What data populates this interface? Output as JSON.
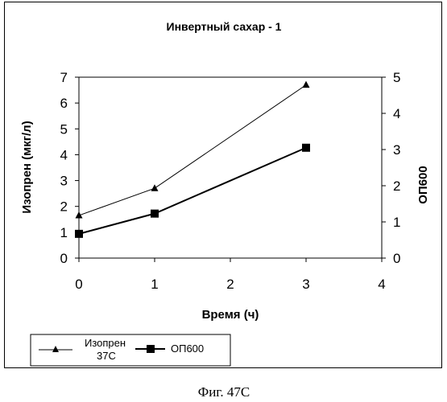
{
  "chart_data": {
    "type": "line",
    "title": "Инвертный сахар - 1",
    "xlabel": "Время (ч)",
    "ylabel": "Изопрен (мкг/л)",
    "y2label": "ОП600",
    "xlim": [
      0,
      4
    ],
    "ylim": [
      0,
      7
    ],
    "y2lim": [
      0,
      5
    ],
    "x_ticks": [
      "0",
      "1",
      "2",
      "3",
      "4"
    ],
    "y_ticks": [
      "0",
      "1",
      "2",
      "3",
      "4",
      "5",
      "6",
      "7"
    ],
    "y2_ticks": [
      "0",
      "1",
      "2",
      "3",
      "4",
      "5"
    ],
    "grid": false,
    "legend_position": "bottom-left",
    "series": [
      {
        "name": "Изопрен 37С",
        "name_line1": "Изопрен",
        "name_line2": "37С",
        "axis": "left",
        "marker": "triangle",
        "x": [
          0,
          1,
          3
        ],
        "values": [
          1.65,
          2.7,
          6.7
        ]
      },
      {
        "name": "ОП600",
        "axis": "right",
        "marker": "square",
        "x": [
          0,
          1,
          3
        ],
        "values": [
          0.67,
          1.23,
          3.05
        ]
      }
    ]
  },
  "caption": "Фиг. 47С"
}
